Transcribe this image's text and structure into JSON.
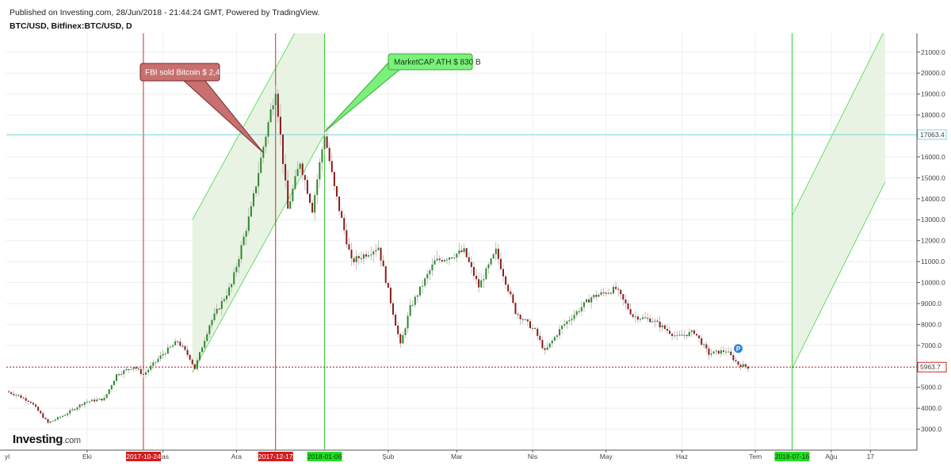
{
  "header": {
    "published": "Published on Investing.com, 28/Jun/2018 - 21:44:24 GMT, Powered by TradingView.",
    "symbol": "BTC/USD, Bitfinex:BTC/USD, D"
  },
  "logo": {
    "brand": "Investing",
    "domain": ".com"
  },
  "colors": {
    "bull": "#2a8a2a",
    "bear": "#8b1a1a",
    "fbi_callout": "#c86f6f",
    "ath_callout": "#7cf07c",
    "green_line": "#33cc33",
    "red_line": "#c03030",
    "channel_fill": "#e9f3e4",
    "channel_line": "#66dd66",
    "hline": "#7fd6d6",
    "last_price": "#cc2222"
  },
  "chart_data": {
    "type": "candlestick",
    "title": "BTC/USD, Bitfinex:BTC/USD, D",
    "y_axis": {
      "ticks": [
        3000,
        4000,
        5000,
        6000,
        7000,
        8000,
        9000,
        10000,
        11000,
        12000,
        13000,
        14000,
        15000,
        16000,
        17000,
        18000,
        19000,
        20000,
        21000
      ],
      "tick_labels": [
        "3000.0",
        "4000.0",
        "5000.0",
        "6000.0",
        "7000.0",
        "8000.0",
        "9000.0",
        "10000.0",
        "11000.0",
        "12000.0",
        "13000.0",
        "14000.0",
        "15000.0",
        "16000.0",
        "17000.0",
        "18000.0",
        "19000.0",
        "20000.0",
        "21000.0"
      ],
      "range": [
        2000,
        21900
      ]
    },
    "x_axis": {
      "month_labels": [
        {
          "label": "Eki",
          "date": "2017-10-01"
        },
        {
          "label": "Kas",
          "date": "2017-11-01"
        },
        {
          "label": "Ara",
          "date": "2017-12-01"
        },
        {
          "label": "Şub",
          "date": "2018-02-01"
        },
        {
          "label": "Mar",
          "date": "2018-03-01"
        },
        {
          "label": "Nis",
          "date": "2018-04-01"
        },
        {
          "label": "May",
          "date": "2018-05-01"
        },
        {
          "label": "Haz",
          "date": "2018-06-01"
        },
        {
          "label": "Tem",
          "date": "2018-07-01"
        },
        {
          "label": "Ağu",
          "date": "2018-08-01"
        },
        {
          "label": "17",
          "date": "2018-08-17"
        }
      ],
      "first_label": "yl",
      "range": [
        "2017-08-29",
        "2018-09-05"
      ]
    },
    "price_series": [
      {
        "date": "2017-08-29",
        "close": 4800
      },
      {
        "date": "2017-09-02",
        "close": 4650
      },
      {
        "date": "2017-09-08",
        "close": 4300
      },
      {
        "date": "2017-09-15",
        "close": 3300
      },
      {
        "date": "2017-09-22",
        "close": 3700
      },
      {
        "date": "2017-09-30",
        "close": 4300
      },
      {
        "date": "2017-10-08",
        "close": 4450
      },
      {
        "date": "2017-10-13",
        "close": 5600
      },
      {
        "date": "2017-10-20",
        "close": 6000
      },
      {
        "date": "2017-10-24",
        "close": 5600
      },
      {
        "date": "2017-11-01",
        "close": 6600
      },
      {
        "date": "2017-11-07",
        "close": 7200
      },
      {
        "date": "2017-11-12",
        "close": 6400
      },
      {
        "date": "2017-11-14",
        "close": 5900
      },
      {
        "date": "2017-11-20",
        "close": 8000
      },
      {
        "date": "2017-11-29",
        "close": 9900
      },
      {
        "date": "2017-12-07",
        "close": 13500
      },
      {
        "date": "2017-12-12",
        "close": 16500
      },
      {
        "date": "2017-12-17",
        "close": 19300
      },
      {
        "date": "2017-12-22",
        "close": 13500
      },
      {
        "date": "2017-12-27",
        "close": 15800
      },
      {
        "date": "2018-01-01",
        "close": 13500
      },
      {
        "date": "2018-01-06",
        "close": 17100
      },
      {
        "date": "2018-01-10",
        "close": 14500
      },
      {
        "date": "2018-01-17",
        "close": 11000
      },
      {
        "date": "2018-01-28",
        "close": 11700
      },
      {
        "date": "2018-02-06",
        "close": 7000
      },
      {
        "date": "2018-02-10",
        "close": 8800
      },
      {
        "date": "2018-02-20",
        "close": 11000
      },
      {
        "date": "2018-03-04",
        "close": 11500
      },
      {
        "date": "2018-03-10",
        "close": 9800
      },
      {
        "date": "2018-03-17",
        "close": 11500
      },
      {
        "date": "2018-03-25",
        "close": 8600
      },
      {
        "date": "2018-04-02",
        "close": 7700
      },
      {
        "date": "2018-04-06",
        "close": 6700
      },
      {
        "date": "2018-04-13",
        "close": 7900
      },
      {
        "date": "2018-04-25",
        "close": 9300
      },
      {
        "date": "2018-05-05",
        "close": 9700
      },
      {
        "date": "2018-05-12",
        "close": 8400
      },
      {
        "date": "2018-05-20",
        "close": 8200
      },
      {
        "date": "2018-05-30",
        "close": 7400
      },
      {
        "date": "2018-06-06",
        "close": 7650
      },
      {
        "date": "2018-06-12",
        "close": 6600
      },
      {
        "date": "2018-06-19",
        "close": 6750
      },
      {
        "date": "2018-06-24",
        "close": 6100
      },
      {
        "date": "2018-06-28",
        "close": 5963.7
      }
    ],
    "horizontal_lines": [
      {
        "value": 17063.4,
        "label": "17063.4"
      },
      {
        "value": 5963.7,
        "label": "5963.7"
      }
    ],
    "vertical_lines": [
      {
        "date": "2017-10-24",
        "label": "2017-10-24",
        "color": "red"
      },
      {
        "date": "2017-12-17",
        "label": "2017-12-17",
        "color": "red"
      },
      {
        "date": "2018-01-06",
        "label": "2018-01-06",
        "color": "green"
      },
      {
        "date": "2018-07-16",
        "label": "2018-07-16",
        "color": "green"
      }
    ],
    "channels": [
      {
        "start": "2017-11-13",
        "end": "2018-01-06",
        "low_start": 5700,
        "low_end": 17100,
        "high_start": 13000,
        "high_end": 24500
      },
      {
        "start": "2018-07-16",
        "end": "2018-08-23",
        "low_start": 5900,
        "low_end": 14800,
        "high_start": 13200,
        "high_end": 22100
      }
    ],
    "callouts": [
      {
        "text": "FBI sold Bitcoin $ 2,4 B",
        "date": "2017-12-12",
        "value": 16200
      },
      {
        "text": "MarketCAP ATH $ 830 B",
        "date": "2018-01-06",
        "value": 17200
      }
    ],
    "marker": {
      "label": "P",
      "date": "2018-06-24",
      "value": 6850
    }
  }
}
